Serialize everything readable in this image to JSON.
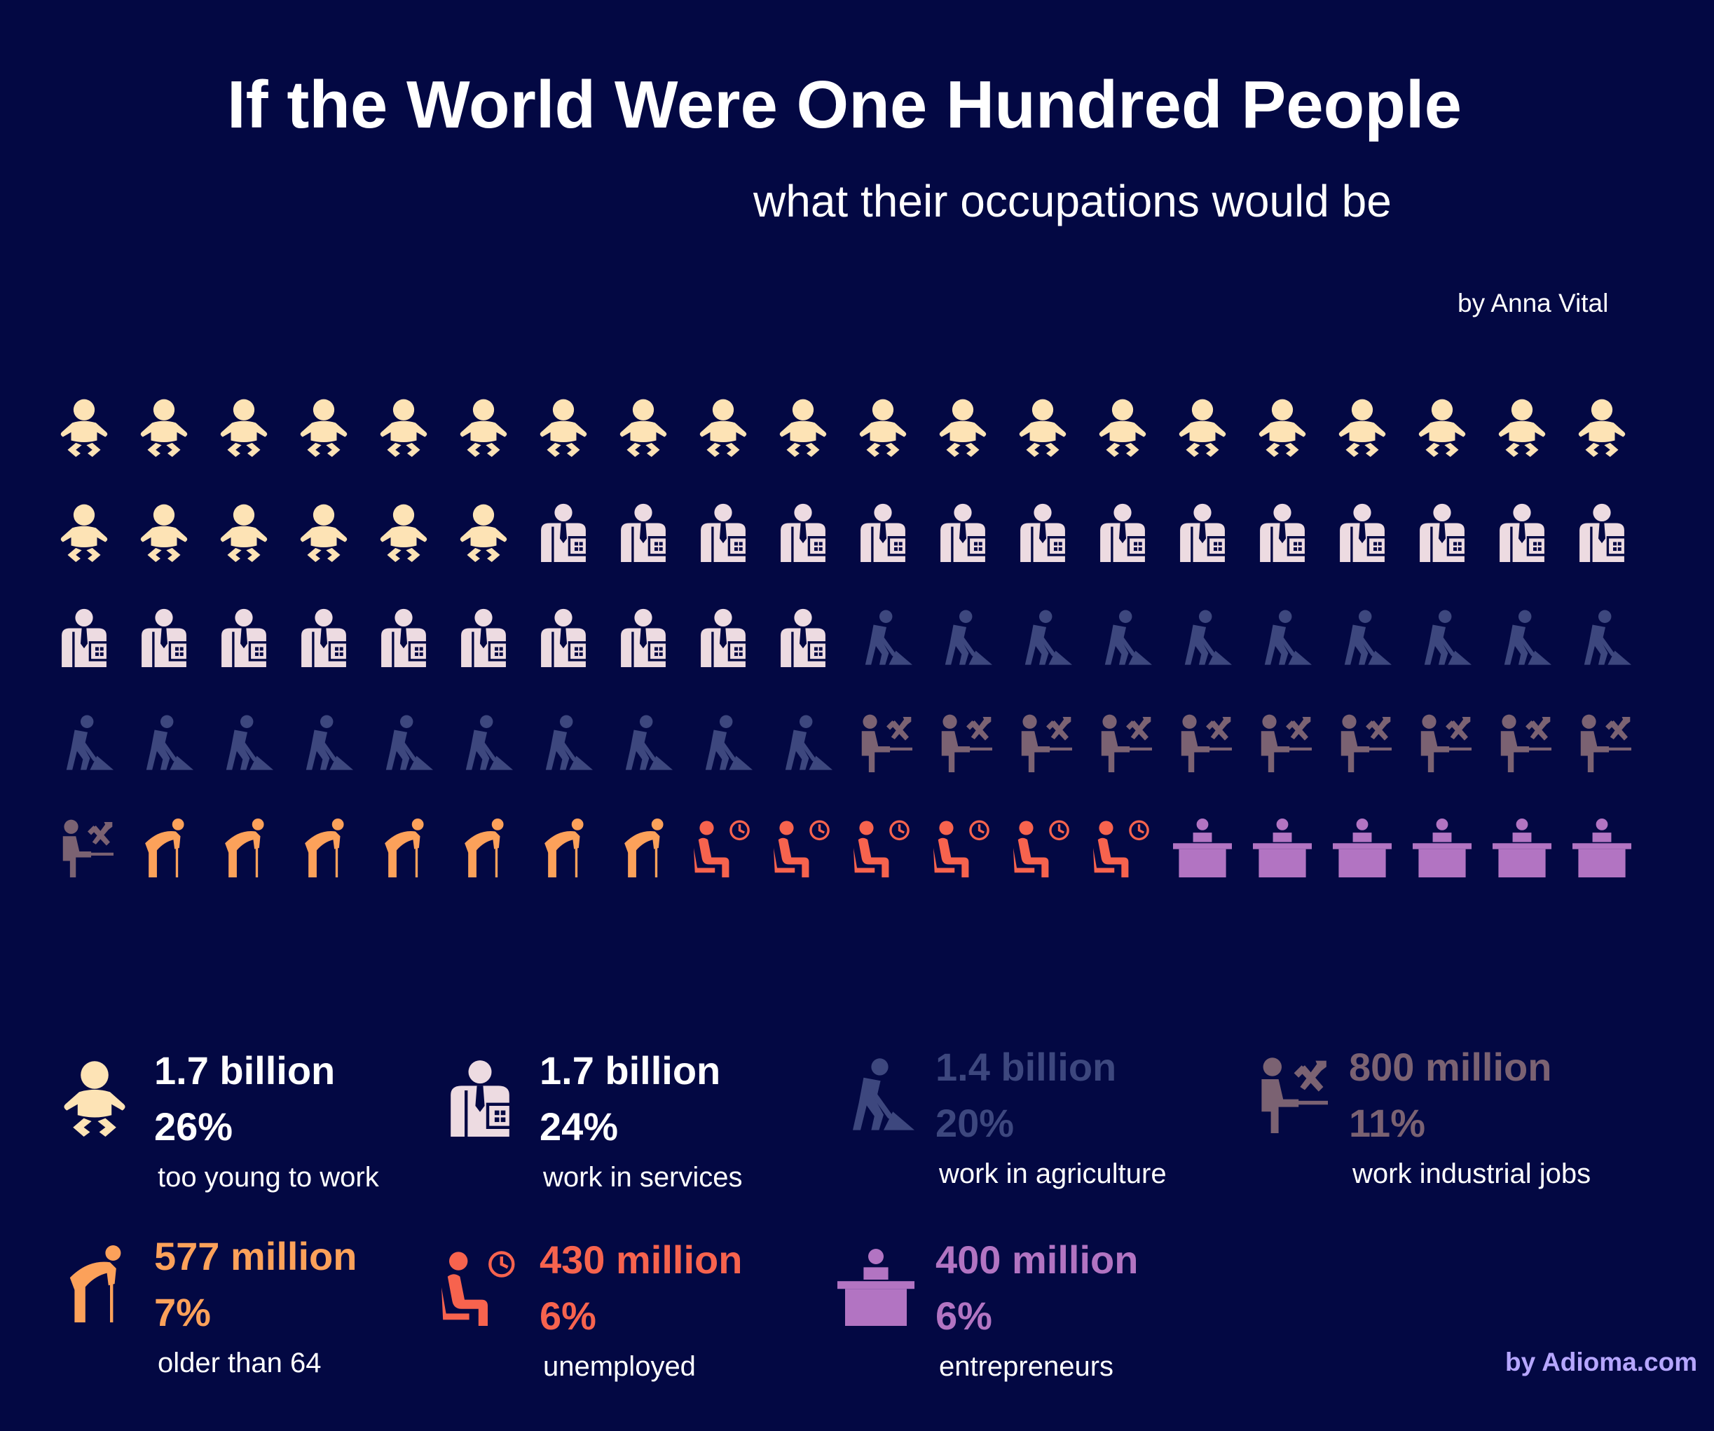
{
  "title": "If the World Were One Hundred People",
  "subtitle": "what their occupations would be",
  "byline": "by Anna Vital",
  "credit": "by Adioma.com",
  "chart_data": {
    "type": "pictogram",
    "total": 100,
    "categories": [
      {
        "key": "young",
        "icon": "baby-icon",
        "count": 26,
        "value": "1.7 billion",
        "percent": "26%",
        "label": "too young to work",
        "color": "#fde3b5",
        "text_color": "#ffffff"
      },
      {
        "key": "services",
        "icon": "office-worker-icon",
        "count": 24,
        "value": "1.7 billion",
        "percent": "24%",
        "label": "work in services",
        "color": "#eddbe1",
        "text_color": "#ffffff"
      },
      {
        "key": "agriculture",
        "icon": "digging-worker-icon",
        "count": 20,
        "value": "1.4 billion",
        "percent": "20%",
        "label": "work in agriculture",
        "color": "#3d477e",
        "text_color": "#3d477e"
      },
      {
        "key": "industrial",
        "icon": "industrial-worker-icon",
        "count": 11,
        "value": "800 million",
        "percent": "11%",
        "label": "work industrial jobs",
        "color": "#7b6272",
        "text_color": "#7b6272"
      },
      {
        "key": "older",
        "icon": "elderly-person-icon",
        "count": 7,
        "value": "577 million",
        "percent": "7%",
        "label": "older than 64",
        "color": "#fca15a",
        "text_color": "#fca15a"
      },
      {
        "key": "unemployed",
        "icon": "waiting-person-icon",
        "count": 6,
        "value": "430 million",
        "percent": "6%",
        "label": "unemployed",
        "color": "#f7634e",
        "text_color": "#f7634e"
      },
      {
        "key": "entrepreneurs",
        "icon": "desk-person-icon",
        "count": 6,
        "value": "400 million",
        "percent": "6%",
        "label": "entrepreneurs",
        "color": "#b274c2",
        "text_color": "#b274c2"
      }
    ]
  }
}
